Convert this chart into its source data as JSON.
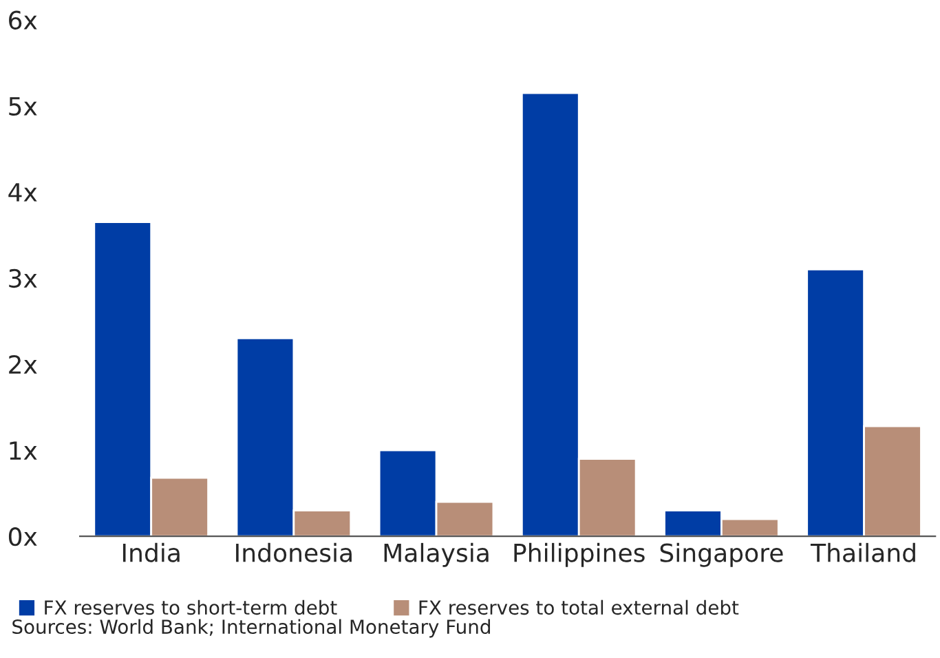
{
  "chart_data": {
    "type": "bar",
    "categories": [
      "India",
      "Indonesia",
      "Malaysia",
      "Philippines",
      "Singapore",
      "Thailand"
    ],
    "series": [
      {
        "name": "FX reserves to short-term debt",
        "color": "#003da5",
        "values": [
          3.65,
          2.3,
          1.0,
          5.15,
          0.3,
          3.1
        ]
      },
      {
        "name": "FX reserves to total external debt",
        "color": "#b88e78",
        "values": [
          0.68,
          0.3,
          0.4,
          0.9,
          0.2,
          1.28
        ]
      }
    ],
    "ylim": [
      0,
      6
    ],
    "yticks": [
      {
        "value": 0,
        "label": "0x"
      },
      {
        "value": 1,
        "label": "1x"
      },
      {
        "value": 2,
        "label": "2x"
      },
      {
        "value": 3,
        "label": "3x"
      },
      {
        "value": 4,
        "label": "4x"
      },
      {
        "value": 5,
        "label": "5x"
      },
      {
        "value": 6,
        "label": "6x"
      }
    ],
    "grid": false,
    "legend": "bottom",
    "annotations": [
      "Sources: World Bank; International Monetary Fund"
    ]
  }
}
